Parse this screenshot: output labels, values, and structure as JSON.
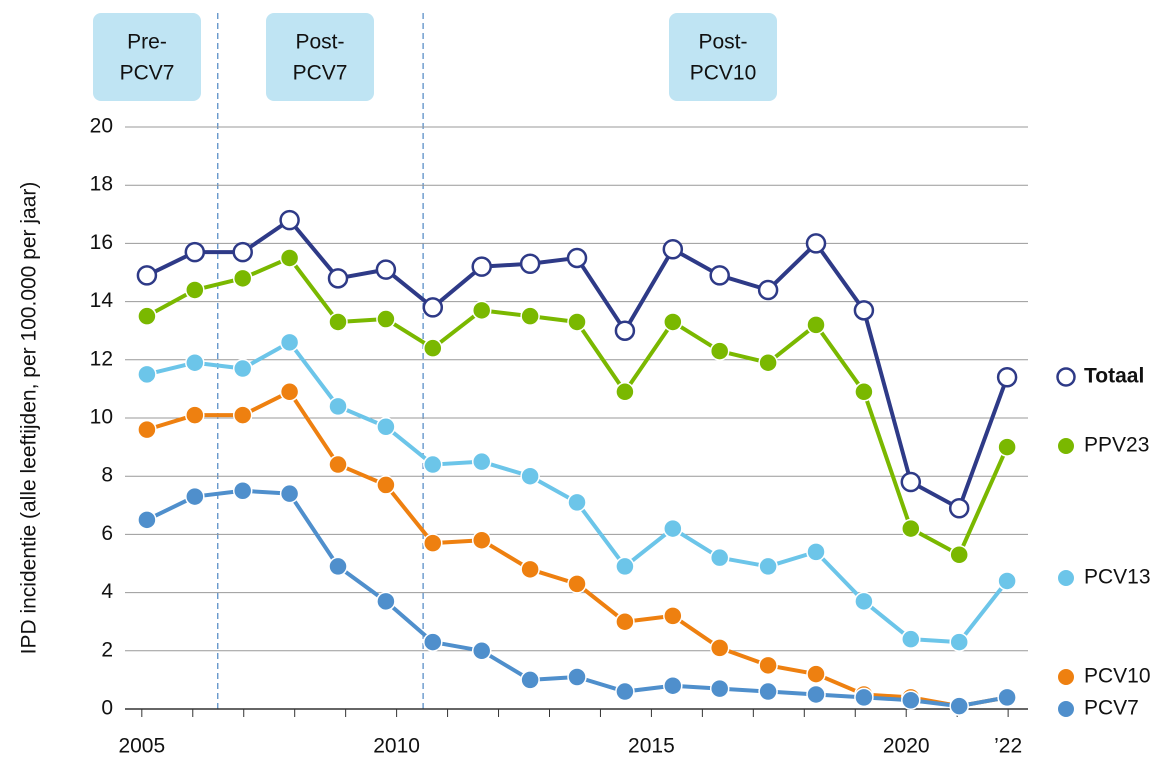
{
  "chart_data": {
    "type": "line",
    "y_label": "IPD incidentie (alle leeftijden, per 100.000 per jaar)",
    "phases": [
      {
        "lines": [
          "Pre-",
          "PCV7"
        ]
      },
      {
        "lines": [
          "Post-",
          "PCV7"
        ]
      },
      {
        "lines": [
          "Post-",
          "PCV10"
        ]
      }
    ],
    "phase_dividers": [
      2006.49,
      2010.52
    ],
    "x": [
      2005.1,
      2006.04,
      2006.98,
      2007.9,
      2008.85,
      2009.79,
      2010.71,
      2011.67,
      2012.62,
      2013.54,
      2014.48,
      2015.42,
      2016.34,
      2017.29,
      2018.23,
      2019.17,
      2020.09,
      2021.04,
      2021.98
    ],
    "series": [
      {
        "name": "Totaal",
        "color": "#2e3a87",
        "hollow": true,
        "values": [
          14.9,
          15.7,
          15.7,
          16.8,
          14.8,
          15.1,
          13.8,
          15.2,
          15.3,
          15.5,
          13.0,
          15.8,
          14.9,
          14.4,
          16.0,
          13.7,
          7.8,
          6.9,
          11.4
        ]
      },
      {
        "name": "PPV23",
        "color": "#7ab800",
        "values": [
          13.5,
          14.4,
          14.8,
          15.5,
          13.3,
          13.4,
          12.4,
          13.7,
          13.5,
          13.3,
          10.9,
          13.3,
          12.3,
          11.9,
          13.2,
          10.9,
          6.2,
          5.3,
          9.0
        ]
      },
      {
        "name": "PCV13",
        "color": "#6cc5e9",
        "values": [
          11.5,
          11.9,
          11.7,
          12.6,
          10.4,
          9.7,
          8.4,
          8.5,
          8.0,
          7.1,
          4.9,
          6.2,
          5.2,
          4.9,
          5.4,
          3.7,
          2.4,
          2.3,
          4.4
        ]
      },
      {
        "name": "PCV10",
        "color": "#ee8010",
        "values": [
          9.6,
          10.1,
          10.1,
          10.9,
          8.4,
          7.7,
          5.7,
          5.8,
          4.8,
          4.3,
          3.0,
          3.2,
          2.1,
          1.5,
          1.2,
          0.5,
          0.4,
          0.1,
          0.4
        ]
      },
      {
        "name": "PCV7",
        "color": "#4f8fcc",
        "values": [
          6.5,
          7.3,
          7.5,
          7.4,
          4.9,
          3.7,
          2.3,
          2.0,
          1.0,
          1.1,
          0.6,
          0.8,
          0.7,
          0.6,
          0.5,
          0.4,
          0.3,
          0.1,
          0.4
        ]
      }
    ],
    "xlim": [
      2004.67,
      2022.39
    ],
    "xticks": [
      2005,
      2010,
      2015,
      2020,
      {
        "value": 2022,
        "label": "’22"
      }
    ],
    "xminorticks": [
      2006,
      2007,
      2008,
      2009,
      2011,
      2012,
      2013,
      2014,
      2016,
      2017,
      2018,
      2019,
      2021
    ],
    "ylim": [
      0,
      20
    ],
    "yticks": [
      0,
      2,
      4,
      6,
      8,
      10,
      12,
      14,
      16,
      18,
      20
    ],
    "grid": true
  }
}
